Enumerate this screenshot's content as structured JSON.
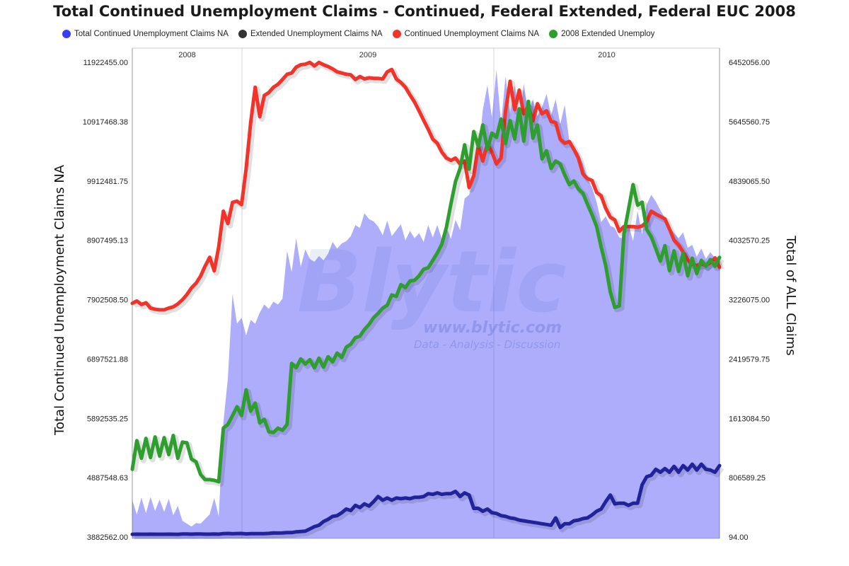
{
  "chart_data": {
    "type": "line",
    "title": "Total Continued Unemployment Claims - Continued, Federal Extended, Federal EUC 2008",
    "ylabel_left": "Total Continued Unemployment Claims NA",
    "ylabel_right": "Total of ALL Claims",
    "left_ticks": [
      "3882562.00",
      "4887548.63",
      "5892535.25",
      "6897521.88",
      "7902508.50",
      "8907495.13",
      "9912481.75",
      "10917468.38",
      "11922455.00"
    ],
    "right_ticks": [
      "94.00",
      "806589.25",
      "1613084.50",
      "2419579.75",
      "3226075.00",
      "4032570.25",
      "4839065.50",
      "5645560.75",
      "6452056.00"
    ],
    "years": [
      "2008",
      "2009",
      "2010"
    ],
    "ylim_left": [
      3882562,
      11922455
    ],
    "ylim_right": [
      94,
      6452056
    ],
    "legend_placement": "top",
    "grid": false,
    "n_points": 130,
    "series": [
      {
        "name": "Total Continued Unemployment Claims NA",
        "color": "#3b3bf5",
        "axis": "right",
        "style": "area",
        "values": [
          500000.0,
          305000.0,
          536000.0,
          325000.0,
          543000.0,
          353000.0,
          510000.0,
          341000.0,
          518000.0,
          295000.0,
          422000.0,
          220000.0,
          182000.0,
          141000.0,
          190000.0,
          182000.0,
          244000.0,
          308000.0,
          530000.0,
          283000.0,
          1550000.0,
          2160000.0,
          3300000.0,
          2900000.0,
          2980000.0,
          2740000.0,
          2950000.0,
          2900000.0,
          3050000.0,
          3160000.0,
          3100000.0,
          3200000.0,
          3160000.0,
          3240000.0,
          3890000.0,
          3600000.0,
          4060000.0,
          3670000.0,
          3910000.0,
          3780000.0,
          3740000.0,
          3820000.0,
          3760000.0,
          3850000.0,
          4010000.0,
          3920000.0,
          3990000.0,
          4020000.0,
          4090000.0,
          4240000.0,
          4200000.0,
          4400000.0,
          4320000.0,
          4290000.0,
          4220000.0,
          4100000.0,
          4300000.0,
          4090000.0,
          4170000.0,
          4250000.0,
          4030000.0,
          4160000.0,
          4060000.0,
          4130000.0,
          4010000.0,
          4240000.0,
          4070000.0,
          4240000.0,
          4050000.0,
          4210000.0,
          4050000.0,
          4310000.0,
          4170000.0,
          4600000.0,
          4650000.0,
          4870000.0,
          5160000.0,
          5800000.0,
          6140000.0,
          5700000.0,
          6350000.0,
          5620000.0,
          6260000.0,
          5750000.0,
          6140000.0,
          5630000.0,
          6160000.0,
          5770000.0,
          5950000.0,
          5720000.0,
          5840000.0,
          6020000.0,
          5730000.0,
          5950000.0,
          5610000.0,
          5870000.0,
          5380000.0,
          5310000.0,
          5220000.0,
          5070000.0,
          4870000.0,
          4750000.0,
          4550000.0,
          4280000.0,
          4360000.0,
          4230000.0,
          4200000.0,
          4070000.0,
          4060000.0,
          4250000.0,
          4020000.0,
          4430000.0,
          4110000.0,
          4520000.0,
          4650000.0,
          4560000.0,
          4440000.0,
          4340000.0,
          4220000.0,
          4130000.0,
          4060000.0,
          4140000.0,
          3930000.0,
          3970000.0,
          3810000.0,
          3920000.0,
          3780000.0,
          3870000.0,
          3790000.0,
          3820000.0
        ]
      },
      {
        "name": "Extended Unemployment Claims NA",
        "color": "#22229a",
        "axis": "right",
        "style": "line",
        "values": [
          37000.0,
          39000.0,
          38000.0,
          38000.0,
          39000.0,
          38000.0,
          38000.0,
          38000.0,
          39000.0,
          38000.0,
          37000.0,
          40000.0,
          40000.0,
          39000.0,
          40000.0,
          40000.0,
          39000.0,
          39000.0,
          40000.0,
          39000.0,
          46000.0,
          48000.0,
          44000.0,
          47000.0,
          48000.0,
          42000.0,
          45000.0,
          45000.0,
          46000.0,
          46000.0,
          49000.0,
          55000.0,
          54000.0,
          55000.0,
          60000.0,
          60000.0,
          70000.0,
          75000.0,
          80000.0,
          110000.0,
          140000.0,
          160000.0,
          210000.0,
          240000.0,
          280000.0,
          290000.0,
          330000.0,
          380000.0,
          360000.0,
          430000.0,
          400000.0,
          450000.0,
          420000.0,
          480000.0,
          550000.0,
          500000.0,
          530000.0,
          500000.0,
          530000.0,
          520000.0,
          530000.0,
          520000.0,
          540000.0,
          540000.0,
          550000.0,
          590000.0,
          580000.0,
          600000.0,
          580000.0,
          590000.0,
          590000.0,
          620000.0,
          550000.0,
          600000.0,
          570000.0,
          390000.0,
          390000.0,
          350000.0,
          380000.0,
          330000.0,
          320000.0,
          290000.0,
          280000.0,
          260000.0,
          250000.0,
          230000.0,
          220000.0,
          210000.0,
          200000.0,
          190000.0,
          180000.0,
          170000.0,
          160000.0,
          260000.0,
          130000.0,
          180000.0,
          180000.0,
          220000.0,
          230000.0,
          250000.0,
          260000.0,
          300000.0,
          350000.0,
          380000.0,
          480000.0,
          570000.0,
          450000.0,
          460000.0,
          460000.0,
          430000.0,
          460000.0,
          460000.0,
          710000.0,
          820000.0,
          840000.0,
          920000.0,
          880000.0,
          930000.0,
          880000.0,
          960000.0,
          880000.0,
          970000.0,
          910000.0,
          990000.0,
          910000.0,
          990000.0,
          920000.0,
          910000.0,
          880000.0,
          970000.0
        ]
      },
      {
        "name": "Continued Unemployment Claims NA",
        "color": "#f2332a",
        "axis": "left",
        "style": "line",
        "values": [
          7840000.0,
          7880000.0,
          7820000.0,
          7850000.0,
          7760000.0,
          7740000.0,
          7730000.0,
          7730000.0,
          7760000.0,
          7780000.0,
          7830000.0,
          7900000.0,
          7990000.0,
          8100000.0,
          8180000.0,
          8300000.0,
          8470000.0,
          8620000.0,
          8390000.0,
          8800000.0,
          9400000.0,
          9190000.0,
          9550000.0,
          9570000.0,
          9510000.0,
          10120000.0,
          10900000.0,
          11500000.0,
          11000000.0,
          11360000.0,
          11410000.0,
          11500000.0,
          11550000.0,
          11630000.0,
          11720000.0,
          11740000.0,
          11840000.0,
          11880000.0,
          11890000.0,
          11920000.0,
          11860000.0,
          11920000.0,
          11880000.0,
          11850000.0,
          11810000.0,
          11760000.0,
          11740000.0,
          11720000.0,
          11710000.0,
          11630000.0,
          11680000.0,
          11640000.0,
          11660000.0,
          11650000.0,
          11650000.0,
          11640000.0,
          11760000.0,
          11800000.0,
          11640000.0,
          11580000.0,
          11500000.0,
          11370000.0,
          11250000.0,
          11100000.0,
          10940000.0,
          10790000.0,
          10620000.0,
          10550000.0,
          10400000.0,
          10300000.0,
          10260000.0,
          10300000.0,
          10200000.0,
          10250000.0,
          9800000.0,
          10000000.0,
          10500000.0,
          10250000.0,
          10550000.0,
          10400000.0,
          10200000.0,
          10300000.0,
          11100000.0,
          11600000.0,
          11120000.0,
          11450000.0,
          11050000.0,
          11180000.0,
          10930000.0,
          11220000.0,
          11050000.0,
          11100000.0,
          10920000.0,
          10900000.0,
          10620000.0,
          10550000.0,
          10580000.0,
          10450000.0,
          10300000.0,
          10030000.0,
          9950000.0,
          9920000.0,
          9720000.0,
          9660000.0,
          9450000.0,
          9300000.0,
          9250000.0,
          9060000.0,
          9140000.0,
          9140000.0,
          9140000.0,
          9130000.0,
          9150000.0,
          9220000.0,
          9400000.0,
          9350000.0,
          9310000.0,
          9270000.0,
          9100000.0,
          8910000.0,
          8830000.0,
          8710000.0,
          8580000.0,
          8500000.0,
          8480000.0,
          8510000.0,
          8480000.0,
          8530000.0,
          8610000.0,
          8450000.0
        ]
      },
      {
        "name": "2008 Extended Unemploy",
        "color": "#2e9e2e",
        "axis": "right",
        "style": "line",
        "values": [
          920000.0,
          1310000.0,
          1070000.0,
          1340000.0,
          1080000.0,
          1360000.0,
          1100000.0,
          1350000.0,
          1120000.0,
          1380000.0,
          1070000.0,
          1290000.0,
          1280000.0,
          1060000.0,
          1020000.0,
          850000.0,
          780000.0,
          780000.0,
          770000.0,
          750000.0,
          1480000.0,
          1530000.0,
          1650000.0,
          1770000.0,
          1650000.0,
          2000000.0,
          1710000.0,
          1820000.0,
          1550000.0,
          1600000.0,
          1430000.0,
          1420000.0,
          1480000.0,
          1450000.0,
          1530000.0,
          2360000.0,
          2300000.0,
          2420000.0,
          2350000.0,
          2410000.0,
          2300000.0,
          2430000.0,
          2310000.0,
          2450000.0,
          2380000.0,
          2500000.0,
          2440000.0,
          2580000.0,
          2620000.0,
          2710000.0,
          2730000.0,
          2820000.0,
          2890000.0,
          2980000.0,
          3040000.0,
          3110000.0,
          3150000.0,
          3290000.0,
          3270000.0,
          3430000.0,
          3390000.0,
          3480000.0,
          3490000.0,
          3550000.0,
          3640000.0,
          3660000.0,
          3760000.0,
          3860000.0,
          3980000.0,
          4210000.0,
          4530000.0,
          4830000.0,
          5010000.0,
          5330000.0,
          5000000.0,
          5510000.0,
          5310000.0,
          5600000.0,
          5270000.0,
          5490000.0,
          5430000.0,
          5680000.0,
          5350000.0,
          5660000.0,
          5410000.0,
          5820000.0,
          5380000.0,
          5920000.0,
          5420000.0,
          5600000.0,
          5140000.0,
          5250000.0,
          5010000.0,
          5110000.0,
          5070000.0,
          4920000.0,
          4790000.0,
          4840000.0,
          4730000.0,
          4670000.0,
          4520000.0,
          4380000.0,
          4220000.0,
          3940000.0,
          3690000.0,
          3330000.0,
          3120000.0,
          3140000.0,
          4120000.0,
          4450000.0,
          4790000.0,
          4510000.0,
          4550000.0,
          4180000.0,
          4080000.0,
          3920000.0,
          3750000.0,
          3960000.0,
          3620000.0,
          3890000.0,
          3610000.0,
          3860000.0,
          3550000.0,
          3790000.0,
          3580000.0,
          3760000.0,
          3680000.0,
          3770000.0,
          3680000.0,
          3800000.0
        ]
      }
    ]
  }
}
